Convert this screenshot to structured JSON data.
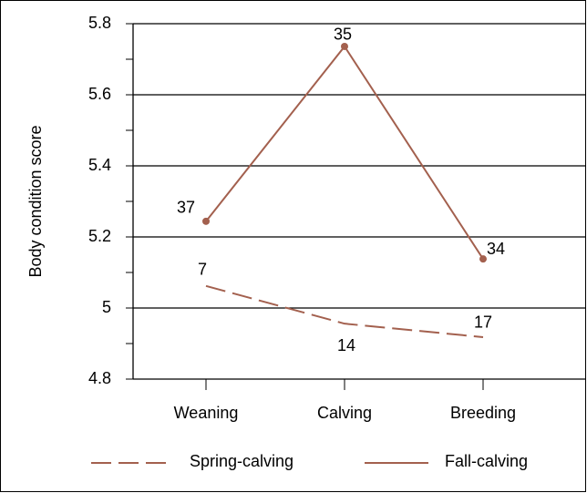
{
  "chart_data": {
    "type": "line",
    "y_label": "Body condition score",
    "categories": [
      "Weaning",
      "Calving",
      "Breeding"
    ],
    "series": [
      {
        "name": "Spring-calving",
        "color": "#a3604e",
        "dash": true,
        "values": [
          5.062,
          4.956,
          4.918
        ],
        "point_labels": [
          "7",
          "14",
          "17"
        ]
      },
      {
        "name": "Fall-calving",
        "color": "#a3604e",
        "dash": false,
        "markers": true,
        "values": [
          5.244,
          5.736,
          5.138
        ],
        "point_labels": [
          "37",
          "35",
          "34"
        ]
      }
    ],
    "ylim": [
      4.8,
      5.8
    ],
    "yticks": [
      {
        "value": 4.8,
        "label": "4.8"
      },
      {
        "value": 5,
        "label": "5"
      },
      {
        "value": 5.2,
        "label": "5.2"
      },
      {
        "value": 5.4,
        "label": "5.4"
      },
      {
        "value": 5.6,
        "label": "5.6"
      },
      {
        "value": 5.8,
        "label": "5.8"
      }
    ],
    "y_minor_ticks": [
      4.9,
      5.1,
      5.3,
      5.5,
      5.7
    ],
    "grid": true,
    "legend": "bottom"
  }
}
